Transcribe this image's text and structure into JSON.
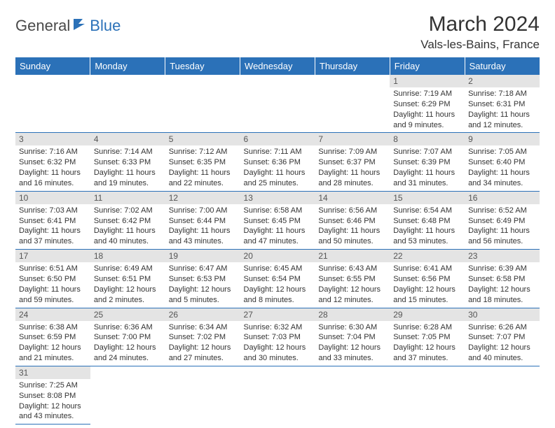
{
  "brand": {
    "part1": "General",
    "part2": "Blue"
  },
  "title": "March 2024",
  "location": "Vals-les-Bains, France",
  "colors": {
    "header_bg": "#2b71b8",
    "header_fg": "#ffffff",
    "daynum_bg": "#e4e4e4",
    "daynum_fg": "#555555",
    "text": "#333333",
    "row_divider": "#2b71b8"
  },
  "fonts": {
    "title_size": 30,
    "location_size": 17,
    "dayhead_size": 13,
    "daynum_size": 12,
    "info_size": 11
  },
  "weekdays": [
    "Sunday",
    "Monday",
    "Tuesday",
    "Wednesday",
    "Thursday",
    "Friday",
    "Saturday"
  ],
  "weeks": [
    [
      null,
      null,
      null,
      null,
      null,
      {
        "n": "1",
        "sr": "Sunrise: 7:19 AM",
        "ss": "Sunset: 6:29 PM",
        "d1": "Daylight: 11 hours",
        "d2": "and 9 minutes."
      },
      {
        "n": "2",
        "sr": "Sunrise: 7:18 AM",
        "ss": "Sunset: 6:31 PM",
        "d1": "Daylight: 11 hours",
        "d2": "and 12 minutes."
      }
    ],
    [
      {
        "n": "3",
        "sr": "Sunrise: 7:16 AM",
        "ss": "Sunset: 6:32 PM",
        "d1": "Daylight: 11 hours",
        "d2": "and 16 minutes."
      },
      {
        "n": "4",
        "sr": "Sunrise: 7:14 AM",
        "ss": "Sunset: 6:33 PM",
        "d1": "Daylight: 11 hours",
        "d2": "and 19 minutes."
      },
      {
        "n": "5",
        "sr": "Sunrise: 7:12 AM",
        "ss": "Sunset: 6:35 PM",
        "d1": "Daylight: 11 hours",
        "d2": "and 22 minutes."
      },
      {
        "n": "6",
        "sr": "Sunrise: 7:11 AM",
        "ss": "Sunset: 6:36 PM",
        "d1": "Daylight: 11 hours",
        "d2": "and 25 minutes."
      },
      {
        "n": "7",
        "sr": "Sunrise: 7:09 AM",
        "ss": "Sunset: 6:37 PM",
        "d1": "Daylight: 11 hours",
        "d2": "and 28 minutes."
      },
      {
        "n": "8",
        "sr": "Sunrise: 7:07 AM",
        "ss": "Sunset: 6:39 PM",
        "d1": "Daylight: 11 hours",
        "d2": "and 31 minutes."
      },
      {
        "n": "9",
        "sr": "Sunrise: 7:05 AM",
        "ss": "Sunset: 6:40 PM",
        "d1": "Daylight: 11 hours",
        "d2": "and 34 minutes."
      }
    ],
    [
      {
        "n": "10",
        "sr": "Sunrise: 7:03 AM",
        "ss": "Sunset: 6:41 PM",
        "d1": "Daylight: 11 hours",
        "d2": "and 37 minutes."
      },
      {
        "n": "11",
        "sr": "Sunrise: 7:02 AM",
        "ss": "Sunset: 6:42 PM",
        "d1": "Daylight: 11 hours",
        "d2": "and 40 minutes."
      },
      {
        "n": "12",
        "sr": "Sunrise: 7:00 AM",
        "ss": "Sunset: 6:44 PM",
        "d1": "Daylight: 11 hours",
        "d2": "and 43 minutes."
      },
      {
        "n": "13",
        "sr": "Sunrise: 6:58 AM",
        "ss": "Sunset: 6:45 PM",
        "d1": "Daylight: 11 hours",
        "d2": "and 47 minutes."
      },
      {
        "n": "14",
        "sr": "Sunrise: 6:56 AM",
        "ss": "Sunset: 6:46 PM",
        "d1": "Daylight: 11 hours",
        "d2": "and 50 minutes."
      },
      {
        "n": "15",
        "sr": "Sunrise: 6:54 AM",
        "ss": "Sunset: 6:48 PM",
        "d1": "Daylight: 11 hours",
        "d2": "and 53 minutes."
      },
      {
        "n": "16",
        "sr": "Sunrise: 6:52 AM",
        "ss": "Sunset: 6:49 PM",
        "d1": "Daylight: 11 hours",
        "d2": "and 56 minutes."
      }
    ],
    [
      {
        "n": "17",
        "sr": "Sunrise: 6:51 AM",
        "ss": "Sunset: 6:50 PM",
        "d1": "Daylight: 11 hours",
        "d2": "and 59 minutes."
      },
      {
        "n": "18",
        "sr": "Sunrise: 6:49 AM",
        "ss": "Sunset: 6:51 PM",
        "d1": "Daylight: 12 hours",
        "d2": "and 2 minutes."
      },
      {
        "n": "19",
        "sr": "Sunrise: 6:47 AM",
        "ss": "Sunset: 6:53 PM",
        "d1": "Daylight: 12 hours",
        "d2": "and 5 minutes."
      },
      {
        "n": "20",
        "sr": "Sunrise: 6:45 AM",
        "ss": "Sunset: 6:54 PM",
        "d1": "Daylight: 12 hours",
        "d2": "and 8 minutes."
      },
      {
        "n": "21",
        "sr": "Sunrise: 6:43 AM",
        "ss": "Sunset: 6:55 PM",
        "d1": "Daylight: 12 hours",
        "d2": "and 12 minutes."
      },
      {
        "n": "22",
        "sr": "Sunrise: 6:41 AM",
        "ss": "Sunset: 6:56 PM",
        "d1": "Daylight: 12 hours",
        "d2": "and 15 minutes."
      },
      {
        "n": "23",
        "sr": "Sunrise: 6:39 AM",
        "ss": "Sunset: 6:58 PM",
        "d1": "Daylight: 12 hours",
        "d2": "and 18 minutes."
      }
    ],
    [
      {
        "n": "24",
        "sr": "Sunrise: 6:38 AM",
        "ss": "Sunset: 6:59 PM",
        "d1": "Daylight: 12 hours",
        "d2": "and 21 minutes."
      },
      {
        "n": "25",
        "sr": "Sunrise: 6:36 AM",
        "ss": "Sunset: 7:00 PM",
        "d1": "Daylight: 12 hours",
        "d2": "and 24 minutes."
      },
      {
        "n": "26",
        "sr": "Sunrise: 6:34 AM",
        "ss": "Sunset: 7:02 PM",
        "d1": "Daylight: 12 hours",
        "d2": "and 27 minutes."
      },
      {
        "n": "27",
        "sr": "Sunrise: 6:32 AM",
        "ss": "Sunset: 7:03 PM",
        "d1": "Daylight: 12 hours",
        "d2": "and 30 minutes."
      },
      {
        "n": "28",
        "sr": "Sunrise: 6:30 AM",
        "ss": "Sunset: 7:04 PM",
        "d1": "Daylight: 12 hours",
        "d2": "and 33 minutes."
      },
      {
        "n": "29",
        "sr": "Sunrise: 6:28 AM",
        "ss": "Sunset: 7:05 PM",
        "d1": "Daylight: 12 hours",
        "d2": "and 37 minutes."
      },
      {
        "n": "30",
        "sr": "Sunrise: 6:26 AM",
        "ss": "Sunset: 7:07 PM",
        "d1": "Daylight: 12 hours",
        "d2": "and 40 minutes."
      }
    ],
    [
      {
        "n": "31",
        "sr": "Sunrise: 7:25 AM",
        "ss": "Sunset: 8:08 PM",
        "d1": "Daylight: 12 hours",
        "d2": "and 43 minutes."
      },
      null,
      null,
      null,
      null,
      null,
      null
    ]
  ]
}
